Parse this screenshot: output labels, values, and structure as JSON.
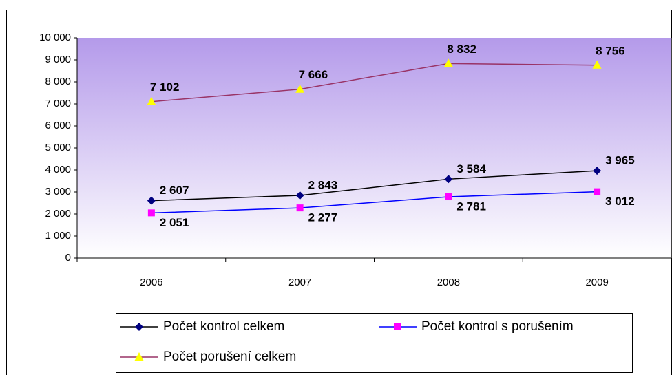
{
  "chart_data": {
    "type": "line",
    "categories": [
      "2006",
      "2007",
      "2008",
      "2009"
    ],
    "series": [
      {
        "name": "Počet kontrol celkem",
        "color": "#000000",
        "marker": "diamond",
        "marker_color": "#000080",
        "values": [
          2607,
          2843,
          3584,
          3965
        ],
        "value_labels": [
          "2 607",
          "2 843",
          "3 584",
          "3 965"
        ]
      },
      {
        "name": "Počet kontrol s porušením",
        "color": "#0000ff",
        "marker": "square",
        "marker_color": "#ff00ff",
        "values": [
          2051,
          2277,
          2781,
          3012
        ],
        "value_labels": [
          "2 051",
          "2 277",
          "2 781",
          "3 012"
        ]
      },
      {
        "name": "Počet porušení celkem",
        "color": "#993366",
        "marker": "triangle",
        "marker_color": "#ffff00",
        "values": [
          7102,
          7666,
          8832,
          8756
        ],
        "value_labels": [
          "7 102",
          "7 666",
          "8 832",
          "8 756"
        ]
      }
    ],
    "ylim": [
      0,
      10000
    ],
    "yticks": [
      0,
      {
        "value": 1000,
        "label": "1 000"
      },
      {
        "value": 2000,
        "label": "2 000"
      },
      {
        "value": 3000,
        "label": "3 000"
      },
      {
        "value": 4000,
        "label": "4 000"
      },
      {
        "value": 5000,
        "label": "5 000"
      },
      {
        "value": 6000,
        "label": "6 000"
      },
      {
        "value": 7000,
        "label": "7 000"
      },
      {
        "value": 8000,
        "label": "8 000"
      },
      {
        "value": 9000,
        "label": "9 000"
      },
      {
        "value": 10000,
        "label": "10 000"
      }
    ],
    "grid": false,
    "legend": "bottom"
  }
}
